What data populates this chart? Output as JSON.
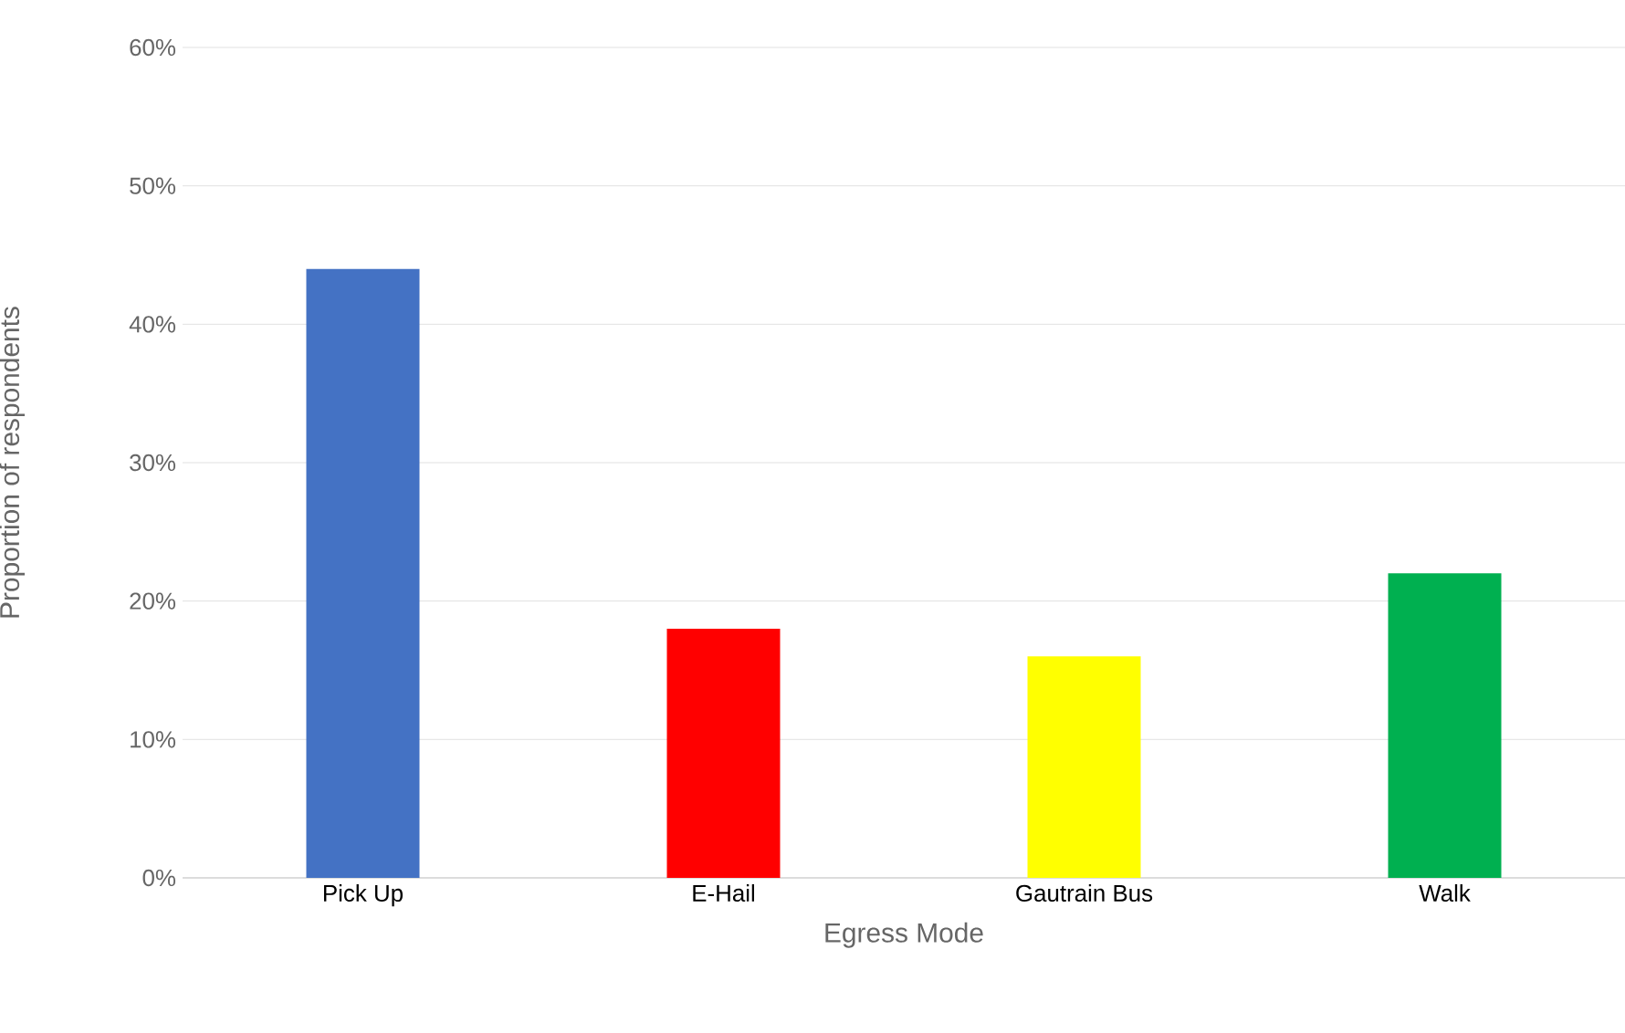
{
  "chart_data": {
    "type": "bar",
    "xlabel": "Egress Mode",
    "ylabel": "Proportion of respondents",
    "categories": [
      "Pick Up",
      "E-Hail",
      "Gautrain Bus",
      "Walk"
    ],
    "values": [
      44,
      18,
      16,
      22
    ],
    "colors": [
      "#4472c4",
      "#ff0000",
      "#ffff00",
      "#00b050"
    ],
    "ylim": [
      0,
      60
    ],
    "yticks": [
      {
        "value": 0,
        "label": "0%"
      },
      {
        "value": 10,
        "label": "10%"
      },
      {
        "value": 20,
        "label": "20%"
      },
      {
        "value": 30,
        "label": "30%"
      },
      {
        "value": 40,
        "label": "40%"
      },
      {
        "value": 50,
        "label": "50%"
      },
      {
        "value": 60,
        "label": "60%"
      }
    ],
    "grid": "y"
  }
}
